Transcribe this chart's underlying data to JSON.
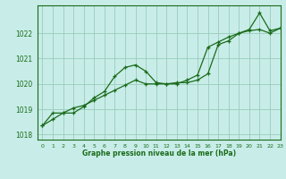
{
  "title": "Graphe pression niveau de la mer (hPa)",
  "bg_color": "#c8ede8",
  "grid_color": "#99ccbb",
  "line_color": "#1a6b1a",
  "xlim": [
    -0.5,
    23
  ],
  "ylim": [
    1017.8,
    1023.1
  ],
  "yticks": [
    1018,
    1019,
    1020,
    1021,
    1022
  ],
  "xticks": [
    0,
    1,
    2,
    3,
    4,
    5,
    6,
    7,
    8,
    9,
    10,
    11,
    12,
    13,
    14,
    15,
    16,
    17,
    18,
    19,
    20,
    21,
    22,
    23
  ],
  "series1_x": [
    0,
    1,
    2,
    3,
    4,
    5,
    6,
    7,
    8,
    9,
    10,
    11,
    12,
    13,
    14,
    15,
    16,
    17,
    18,
    19,
    20,
    21,
    22,
    23
  ],
  "series1_y": [
    1018.35,
    1018.85,
    1018.85,
    1018.85,
    1019.1,
    1019.45,
    1019.7,
    1020.3,
    1020.65,
    1020.75,
    1020.5,
    1020.05,
    1020.0,
    1020.05,
    1020.05,
    1020.15,
    1020.4,
    1021.55,
    1021.7,
    1022.0,
    1022.15,
    1022.8,
    1022.1,
    1022.2
  ],
  "series2_x": [
    0,
    1,
    2,
    3,
    4,
    5,
    6,
    7,
    8,
    9,
    10,
    11,
    12,
    13,
    14,
    15,
    16,
    17,
    18,
    19,
    20,
    21,
    22,
    23
  ],
  "series2_y": [
    1018.35,
    1018.6,
    1018.85,
    1019.05,
    1019.15,
    1019.35,
    1019.55,
    1019.75,
    1019.95,
    1020.15,
    1020.0,
    1020.0,
    1020.0,
    1020.0,
    1020.15,
    1020.35,
    1021.45,
    1021.65,
    1021.85,
    1022.0,
    1022.1,
    1022.15,
    1022.0,
    1022.2
  ]
}
